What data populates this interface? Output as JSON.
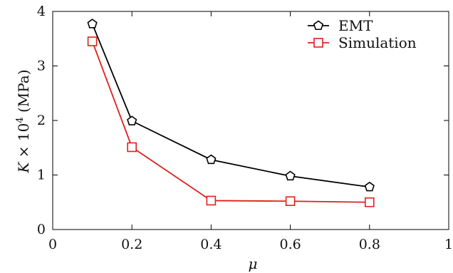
{
  "chart_data": {
    "type": "line",
    "xlabel": "μ",
    "ylabel": "K × 10⁴ (MPa)",
    "ylabel_parts": {
      "symbol": "K",
      "times": " × 10",
      "exponent": "4",
      "unit": " (MPa)"
    },
    "xlim": [
      0,
      1
    ],
    "ylim": [
      0,
      4
    ],
    "x_ticks": [
      0,
      0.2,
      0.4,
      0.6,
      0.8,
      1
    ],
    "x_tick_labels": [
      "0",
      "0.2",
      "0.4",
      "0.6",
      "0.8",
      "1"
    ],
    "y_ticks": [
      0,
      1,
      2,
      3,
      4
    ],
    "y_tick_labels": [
      "0",
      "1",
      "2",
      "3",
      "4"
    ],
    "grid": false,
    "legend_position": "top-right",
    "series": [
      {
        "name": "EMT",
        "color": "#000000",
        "marker": "pentagon",
        "x": [
          0.1,
          0.2,
          0.4,
          0.6,
          0.8
        ],
        "y": [
          3.77,
          1.99,
          1.28,
          0.98,
          0.78
        ]
      },
      {
        "name": "Simulation",
        "color": "#e0201b",
        "marker": "square",
        "x": [
          0.1,
          0.2,
          0.4,
          0.6,
          0.8
        ],
        "y": [
          3.45,
          1.51,
          0.53,
          0.52,
          0.5
        ]
      }
    ]
  }
}
